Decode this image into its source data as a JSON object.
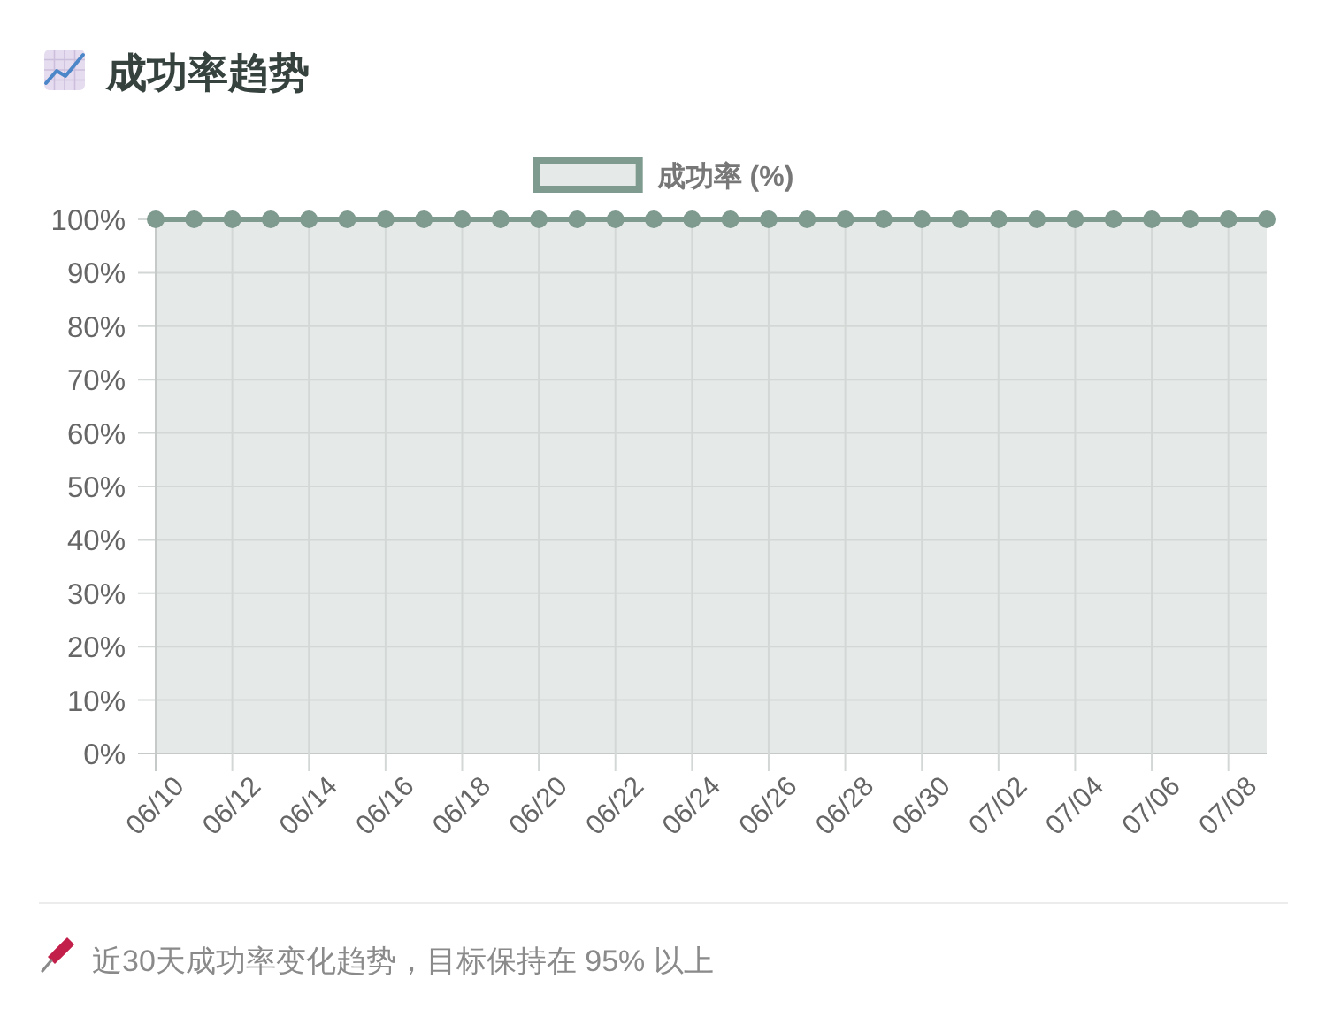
{
  "chart_data": {
    "type": "line",
    "title": "成功率趋势",
    "x": [
      "--06-10",
      "--06-11",
      "--06-12",
      "--06-13",
      "--06-14",
      "--06-15",
      "--06-16",
      "--06-17",
      "--06-18",
      "--06-19",
      "--06-20",
      "--06-21",
      "--06-22",
      "--06-23",
      "--06-24",
      "--06-25",
      "--06-26",
      "--06-27",
      "--06-28",
      "--06-29",
      "--06-30",
      "--07-01",
      "--07-02",
      "--07-03",
      "--07-04",
      "--07-05",
      "--07-06",
      "--07-07",
      "--07-08",
      "--07-09"
    ],
    "series": [
      {
        "name": "成功率 (%)",
        "color": "#7f9a8f",
        "values": [
          100,
          100,
          100,
          100,
          100,
          100,
          100,
          100,
          100,
          100,
          100,
          100,
          100,
          100,
          100,
          100,
          100,
          100,
          100,
          100,
          100,
          100,
          100,
          100,
          100,
          100,
          100,
          100,
          100,
          100
        ]
      }
    ],
    "xlim": [
      "--06-10",
      "--07-09"
    ],
    "xticks": [
      {
        "value": "--06-10",
        "label": "06/10"
      },
      {
        "value": "--06-12",
        "label": "06/12"
      },
      {
        "value": "--06-14",
        "label": "06/14"
      },
      {
        "value": "--06-16",
        "label": "06/16"
      },
      {
        "value": "--06-18",
        "label": "06/18"
      },
      {
        "value": "--06-20",
        "label": "06/20"
      },
      {
        "value": "--06-22",
        "label": "06/22"
      },
      {
        "value": "--06-24",
        "label": "06/24"
      },
      {
        "value": "--06-26",
        "label": "06/26"
      },
      {
        "value": "--06-28",
        "label": "06/28"
      },
      {
        "value": "--06-30",
        "label": "06/30"
      },
      {
        "value": "--07-02",
        "label": "07/02"
      },
      {
        "value": "--07-04",
        "label": "07/04"
      },
      {
        "value": "--07-06",
        "label": "07/06"
      },
      {
        "value": "--07-08",
        "label": "07/08"
      }
    ],
    "ylim": [
      0,
      100
    ],
    "yticks": [
      {
        "value": 0,
        "label": "0%"
      },
      {
        "value": 10,
        "label": "10%"
      },
      {
        "value": 20,
        "label": "20%"
      },
      {
        "value": 30,
        "label": "30%"
      },
      {
        "value": 40,
        "label": "40%"
      },
      {
        "value": 50,
        "label": "50%"
      },
      {
        "value": 60,
        "label": "60%"
      },
      {
        "value": 70,
        "label": "70%"
      },
      {
        "value": 80,
        "label": "80%"
      },
      {
        "value": 90,
        "label": "90%"
      },
      {
        "value": 100,
        "label": "100%"
      }
    ],
    "grid": true,
    "legend": "top",
    "marker": "circle",
    "annotations": [
      "近30天成功率变化趋势，目标保持在 95% 以上"
    ]
  }
}
